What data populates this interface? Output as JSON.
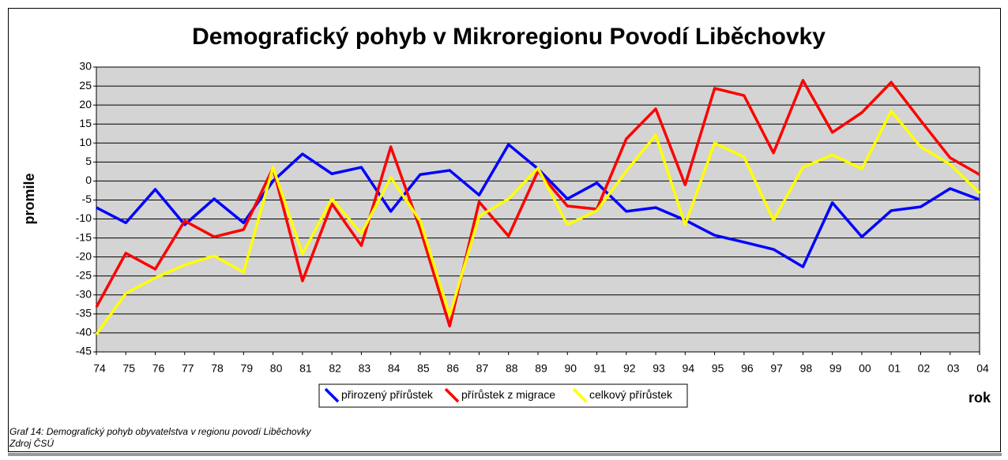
{
  "chart_data": {
    "type": "line",
    "title": "Demografický pohyb v Mikroregionu Povodí Liběchovky",
    "x_label": "rok",
    "y_label": "promile",
    "categories": [
      "74",
      "75",
      "76",
      "77",
      "78",
      "79",
      "80",
      "81",
      "82",
      "83",
      "84",
      "85",
      "86",
      "87",
      "88",
      "89",
      "90",
      "91",
      "92",
      "93",
      "94",
      "95",
      "96",
      "97",
      "98",
      "99",
      "00",
      "01",
      "02",
      "03",
      "04"
    ],
    "series": [
      {
        "name": "přirozený přírůstek",
        "color": "#0000ff",
        "values": [
          -7,
          -11,
          -2.2,
          -11.5,
          -4.7,
          -11,
          0,
          7.1,
          1.9,
          3.6,
          -8,
          1.7,
          2.8,
          -3.7,
          9.6,
          3.2,
          -4.7,
          -0.5,
          -8,
          -7,
          -10.3,
          -14.3,
          -16.1,
          -18,
          -22.6,
          -5.7,
          -14.7,
          -7.8,
          -6.8,
          -2,
          -4.9
        ]
      },
      {
        "name": "přírůstek z migrace",
        "color": "#ff0000",
        "values": [
          -33.2,
          -19,
          -23.2,
          -10.5,
          -14.7,
          -12.8,
          3.4,
          -26.3,
          -6,
          -17,
          9,
          -12.6,
          -38.2,
          -5.5,
          -14.5,
          2.6,
          -6.6,
          -7.4,
          11.1,
          19,
          -1,
          24.4,
          22.5,
          7.4,
          26.5,
          12.8,
          18,
          26,
          15.9,
          6.1,
          1.7
        ]
      },
      {
        "name": "celkový přírůstek",
        "color": "#ffff00",
        "values": [
          -40.4,
          -29.6,
          -25.5,
          -22.1,
          -19.7,
          -24,
          3.6,
          -19.2,
          -4.7,
          -13.8,
          0.9,
          -10.5,
          -35.4,
          -9.3,
          -4.7,
          3.4,
          -11.5,
          -7.8,
          2.6,
          12.1,
          -11.5,
          10,
          6.3,
          -10.3,
          3.6,
          6.9,
          3.2,
          18.4,
          9,
          4.4,
          -3.2
        ]
      }
    ],
    "ylim": [
      -45,
      30
    ],
    "yticks": [
      30,
      25,
      20,
      15,
      10,
      5,
      0,
      -5,
      -10,
      -15,
      -20,
      -25,
      -30,
      -35,
      -40,
      -45
    ],
    "grid": true
  },
  "caption": [
    "Graf 14: Demografický pohyb obyvatelstva v regionu povodí Liběchovky",
    "Zdroj ČSÚ"
  ]
}
